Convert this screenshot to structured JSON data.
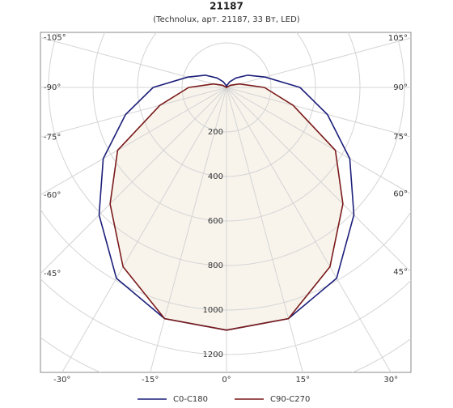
{
  "chart_data": {
    "type": "polar",
    "title": "21187",
    "subtitle": "(Technolux, арт. 21187, 33 Вт, LED)",
    "angles": [
      -180,
      -165,
      -150,
      -135,
      -120,
      -105,
      -90,
      -75,
      -60,
      -45,
      -30,
      -15,
      0,
      15,
      30,
      45,
      60,
      75,
      90,
      105,
      120,
      135,
      150,
      165,
      180
    ],
    "series": [
      {
        "name": "C0-C180",
        "color": "#1c1f7a",
        "values": [
          0,
          10,
          30,
          60,
          110,
          180,
          330,
          470,
          640,
          810,
          990,
          1075,
          1090,
          1075,
          990,
          810,
          640,
          470,
          330,
          180,
          110,
          60,
          30,
          10,
          0
        ]
      },
      {
        "name": "C90-C270",
        "color": "#7a1a1a",
        "values": [
          0,
          0,
          0,
          0,
          20,
          60,
          170,
          310,
          565,
          740,
          930,
          1075,
          1090,
          1075,
          930,
          740,
          565,
          310,
          170,
          60,
          20,
          0,
          0,
          0,
          0
        ]
      }
    ],
    "rlim": [
      0,
      1400
    ],
    "rticks": [
      200,
      400,
      600,
      800,
      1000,
      1200
    ],
    "angle_ticks": [
      {
        "value": -105,
        "label": "-105°"
      },
      {
        "value": -90,
        "label": "-90°"
      },
      {
        "value": -75,
        "label": "-75°"
      },
      {
        "value": -60,
        "label": "-60°"
      },
      {
        "value": -45,
        "label": "-45°"
      },
      {
        "value": -30,
        "label": "-30°"
      },
      {
        "value": -15,
        "label": "-15°"
      },
      {
        "value": 0,
        "label": "0°"
      },
      {
        "value": 15,
        "label": "15°"
      },
      {
        "value": 30,
        "label": "30°"
      },
      {
        "value": 45,
        "label": "45°"
      },
      {
        "value": 60,
        "label": "60°"
      },
      {
        "value": 75,
        "label": "75°"
      },
      {
        "value": 90,
        "label": "90°"
      },
      {
        "value": 105,
        "label": "105°"
      }
    ]
  }
}
